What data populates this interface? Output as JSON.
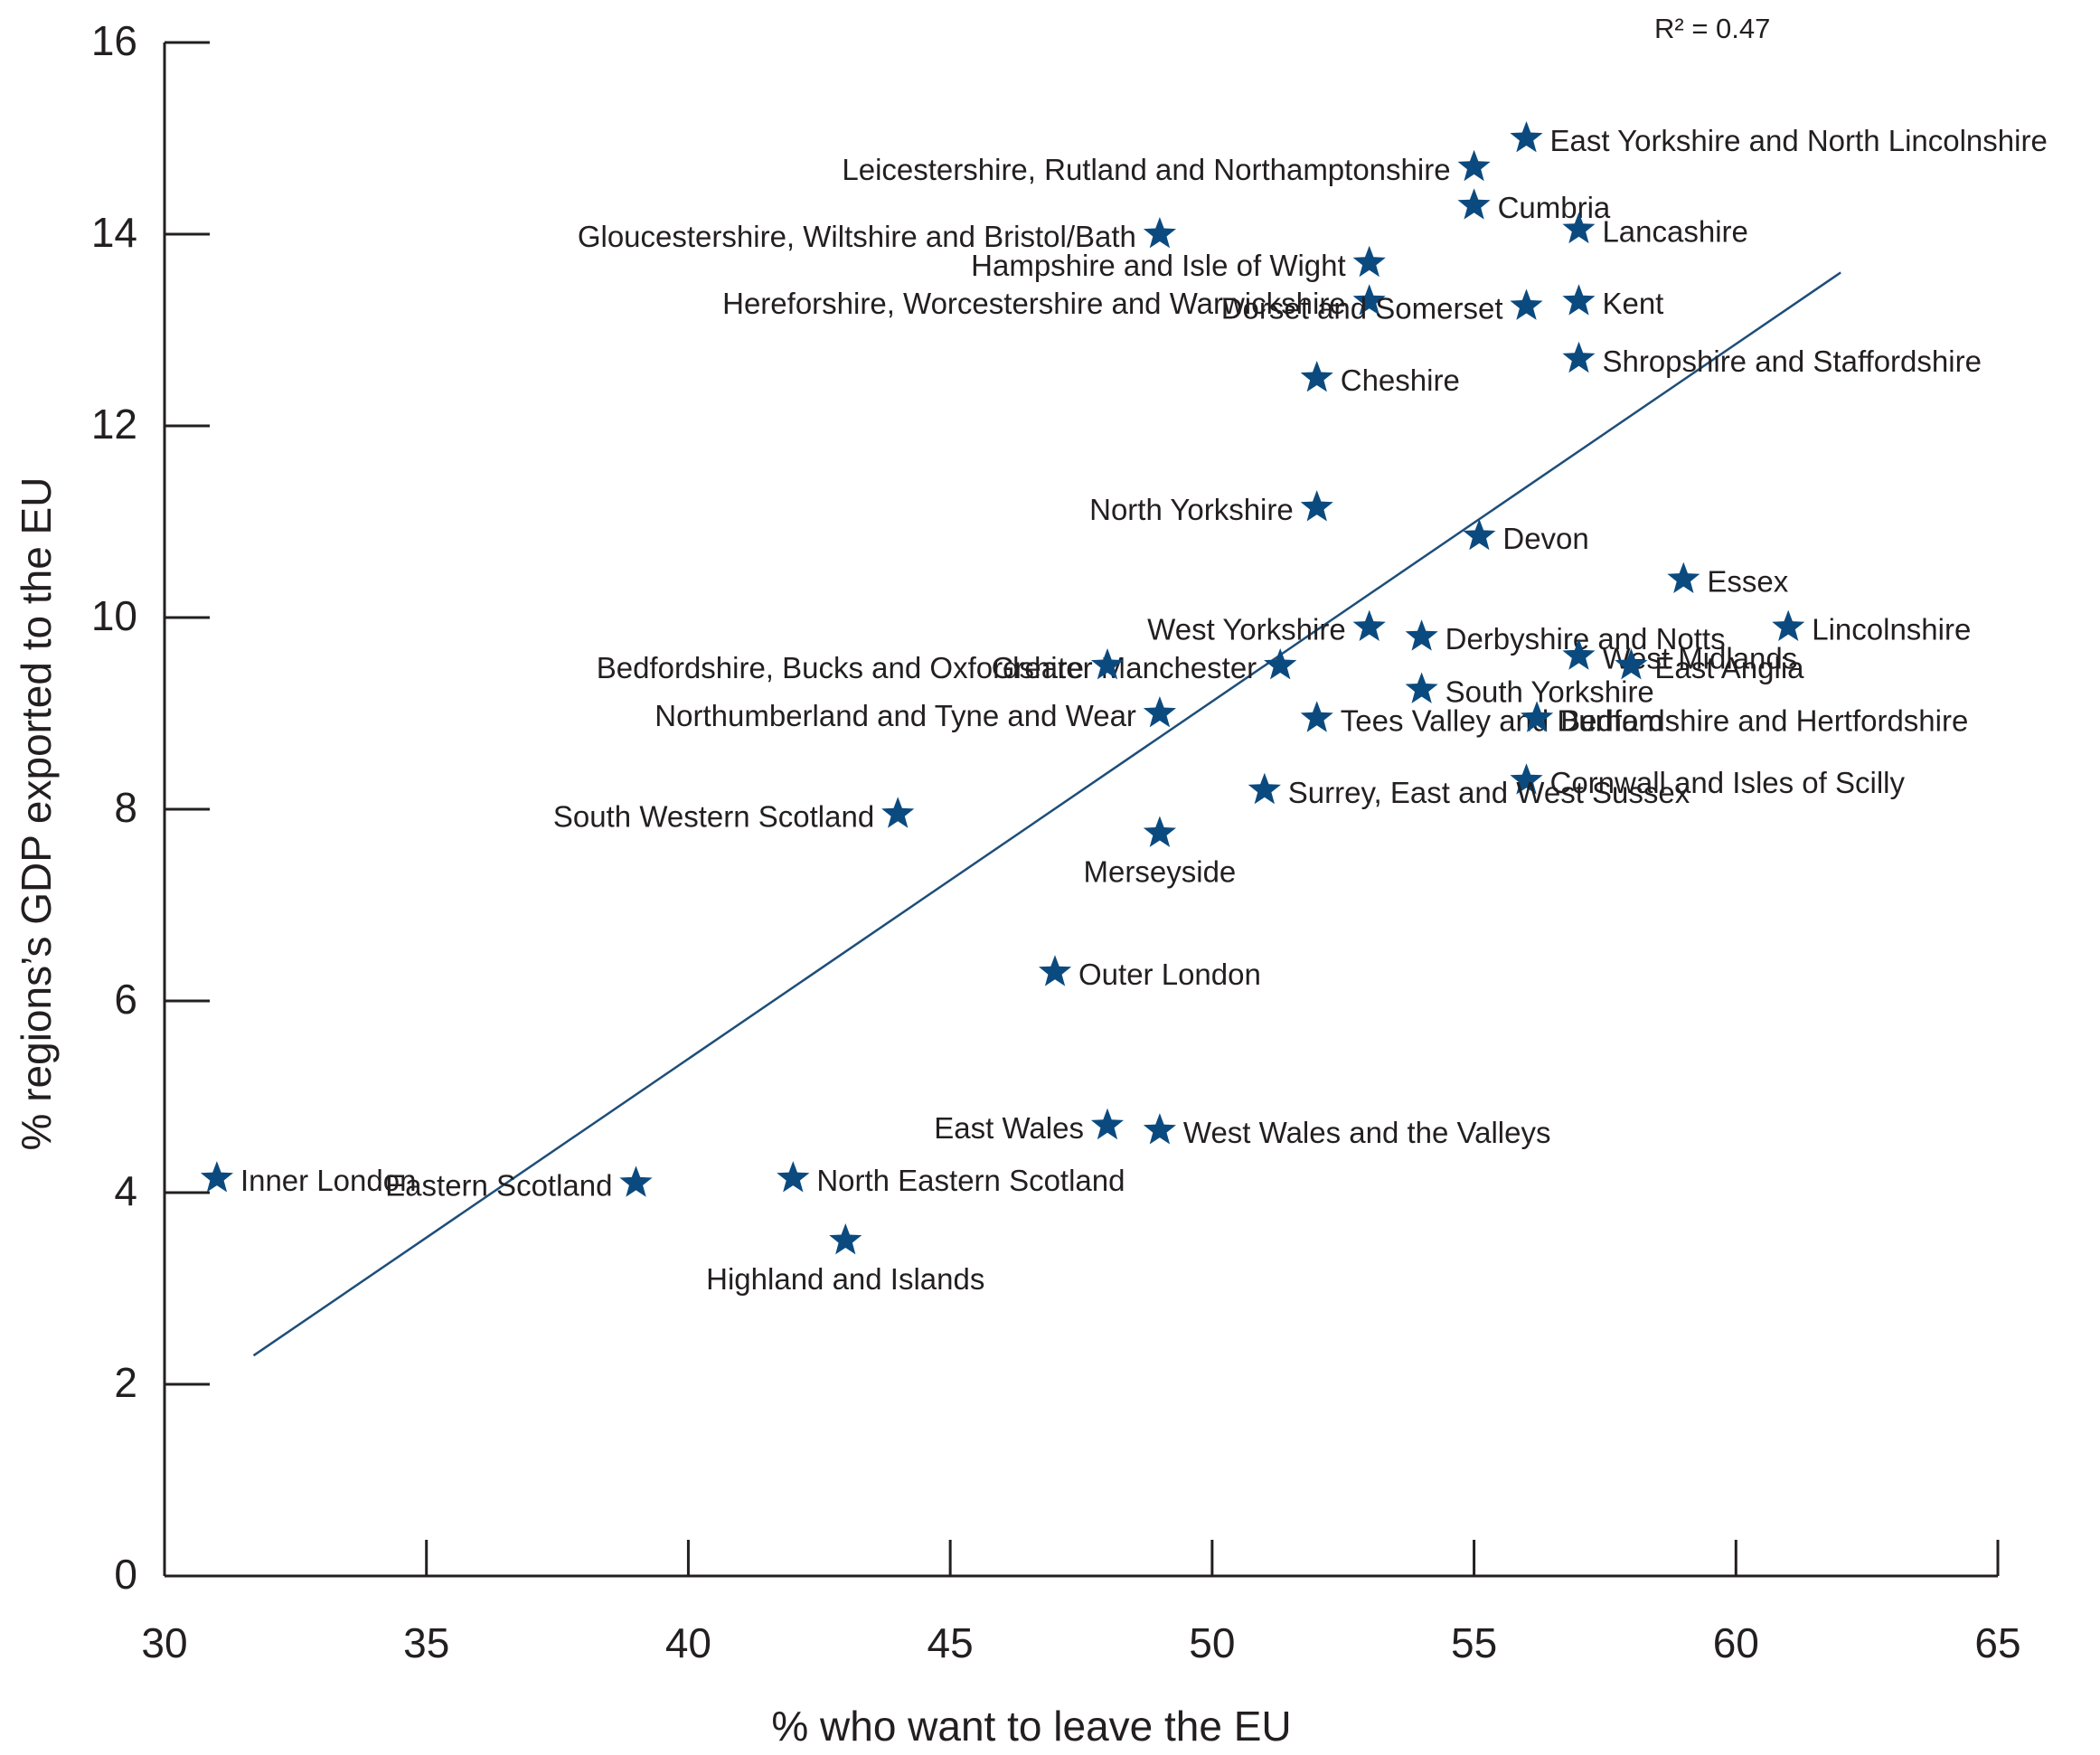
{
  "chart_data": {
    "type": "scatter",
    "title": "",
    "xlabel": "% who want to leave the EU",
    "ylabel": "% regions’s GDP exported to the EU",
    "xlim": [
      30,
      65
    ],
    "ylim": [
      0,
      16
    ],
    "xticks": [
      30,
      35,
      40,
      45,
      50,
      55,
      60,
      65
    ],
    "yticks": [
      0,
      2,
      4,
      6,
      8,
      10,
      12,
      14,
      16
    ],
    "grid": false,
    "legend": "none",
    "marker": "star",
    "marker_color": "#0b4a7f",
    "line_color": "#1d4e7a",
    "annotation": "R² = 0.47",
    "trendline": {
      "x": [
        31.7,
        62.0
      ],
      "y": [
        2.3,
        13.6
      ]
    },
    "points": [
      {
        "label": "East Yorkshire and North Lincolnshire",
        "x": 56.0,
        "y": 15.0,
        "anchor": "start"
      },
      {
        "label": "Leicestershire, Rutland and Northamptonshire",
        "x": 55.0,
        "y": 14.7,
        "anchor": "end"
      },
      {
        "label": "Cumbria",
        "x": 55.0,
        "y": 14.3,
        "anchor": "start"
      },
      {
        "label": "Gloucestershire, Wiltshire and Bristol/Bath",
        "x": 49.0,
        "y": 14.0,
        "anchor": "end"
      },
      {
        "label": "Lancashire",
        "x": 57.0,
        "y": 14.05,
        "anchor": "start"
      },
      {
        "label": "Hampshire and Isle of Wight",
        "x": 53.0,
        "y": 13.7,
        "anchor": "end"
      },
      {
        "label": "Hereforshire, Worcestershire and Warwickshire",
        "x": 53.0,
        "y": 13.3,
        "anchor": "end"
      },
      {
        "label": "Dorset and Somerset",
        "x": 56.0,
        "y": 13.25,
        "anchor": "end"
      },
      {
        "label": "Kent",
        "x": 57.0,
        "y": 13.3,
        "anchor": "start"
      },
      {
        "label": "Shropshire and Staffordshire",
        "x": 57.0,
        "y": 12.7,
        "anchor": "start"
      },
      {
        "label": "Cheshire",
        "x": 52.0,
        "y": 12.5,
        "anchor": "start"
      },
      {
        "label": "North Yorkshire",
        "x": 52.0,
        "y": 11.15,
        "anchor": "end"
      },
      {
        "label": "Devon",
        "x": 55.1,
        "y": 10.85,
        "anchor": "start"
      },
      {
        "label": "Essex",
        "x": 59.0,
        "y": 10.4,
        "anchor": "start"
      },
      {
        "label": "West Yorkshire",
        "x": 53.0,
        "y": 9.9,
        "anchor": "end"
      },
      {
        "label": "Derbyshire and Notts",
        "x": 54.0,
        "y": 9.8,
        "anchor": "start"
      },
      {
        "label": "Lincolnshire",
        "x": 61.0,
        "y": 9.9,
        "anchor": "start"
      },
      {
        "label": "West Midlands",
        "x": 57.0,
        "y": 9.6,
        "anchor": "start"
      },
      {
        "label": "Greater Manchester",
        "x": 51.3,
        "y": 9.5,
        "anchor": "end"
      },
      {
        "label": "Bedfordshire, Bucks and Oxfordshire",
        "x": 48.0,
        "y": 9.5,
        "anchor": "end"
      },
      {
        "label": "East Anglia",
        "x": 58.0,
        "y": 9.5,
        "anchor": "start"
      },
      {
        "label": "South Yorkshire",
        "x": 54.0,
        "y": 9.25,
        "anchor": "start"
      },
      {
        "label": "Northumberland and Tyne and Wear",
        "x": 49.0,
        "y": 9.0,
        "anchor": "end"
      },
      {
        "label": "Tees Valley and Durham",
        "x": 52.0,
        "y": 8.95,
        "anchor": "start"
      },
      {
        "label": "Bedfordshire and Hertfordshire",
        "x": 56.2,
        "y": 8.95,
        "anchor": "start"
      },
      {
        "label": "Cornwall and Isles of Scilly",
        "x": 56.0,
        "y": 8.3,
        "anchor": "start"
      },
      {
        "label": "Surrey, East and West Sussex",
        "x": 51.0,
        "y": 8.2,
        "anchor": "start"
      },
      {
        "label": "South Western Scotland",
        "x": 44.0,
        "y": 7.95,
        "anchor": "end"
      },
      {
        "label": "Merseyside",
        "x": 49.0,
        "y": 7.75,
        "anchor": "middle"
      },
      {
        "label": "Outer London",
        "x": 47.0,
        "y": 6.3,
        "anchor": "start"
      },
      {
        "label": "East Wales",
        "x": 48.0,
        "y": 4.7,
        "anchor": "end"
      },
      {
        "label": "West Wales and the Valleys",
        "x": 49.0,
        "y": 4.65,
        "anchor": "start"
      },
      {
        "label": "North Eastern Scotland",
        "x": 42.0,
        "y": 4.15,
        "anchor": "start"
      },
      {
        "label": "Inner London",
        "x": 31.0,
        "y": 4.15,
        "anchor": "start"
      },
      {
        "label": "Eastern Scotland",
        "x": 39.0,
        "y": 4.1,
        "anchor": "end"
      },
      {
        "label": "Highland and Islands",
        "x": 43.0,
        "y": 3.5,
        "anchor": "middle"
      }
    ]
  }
}
